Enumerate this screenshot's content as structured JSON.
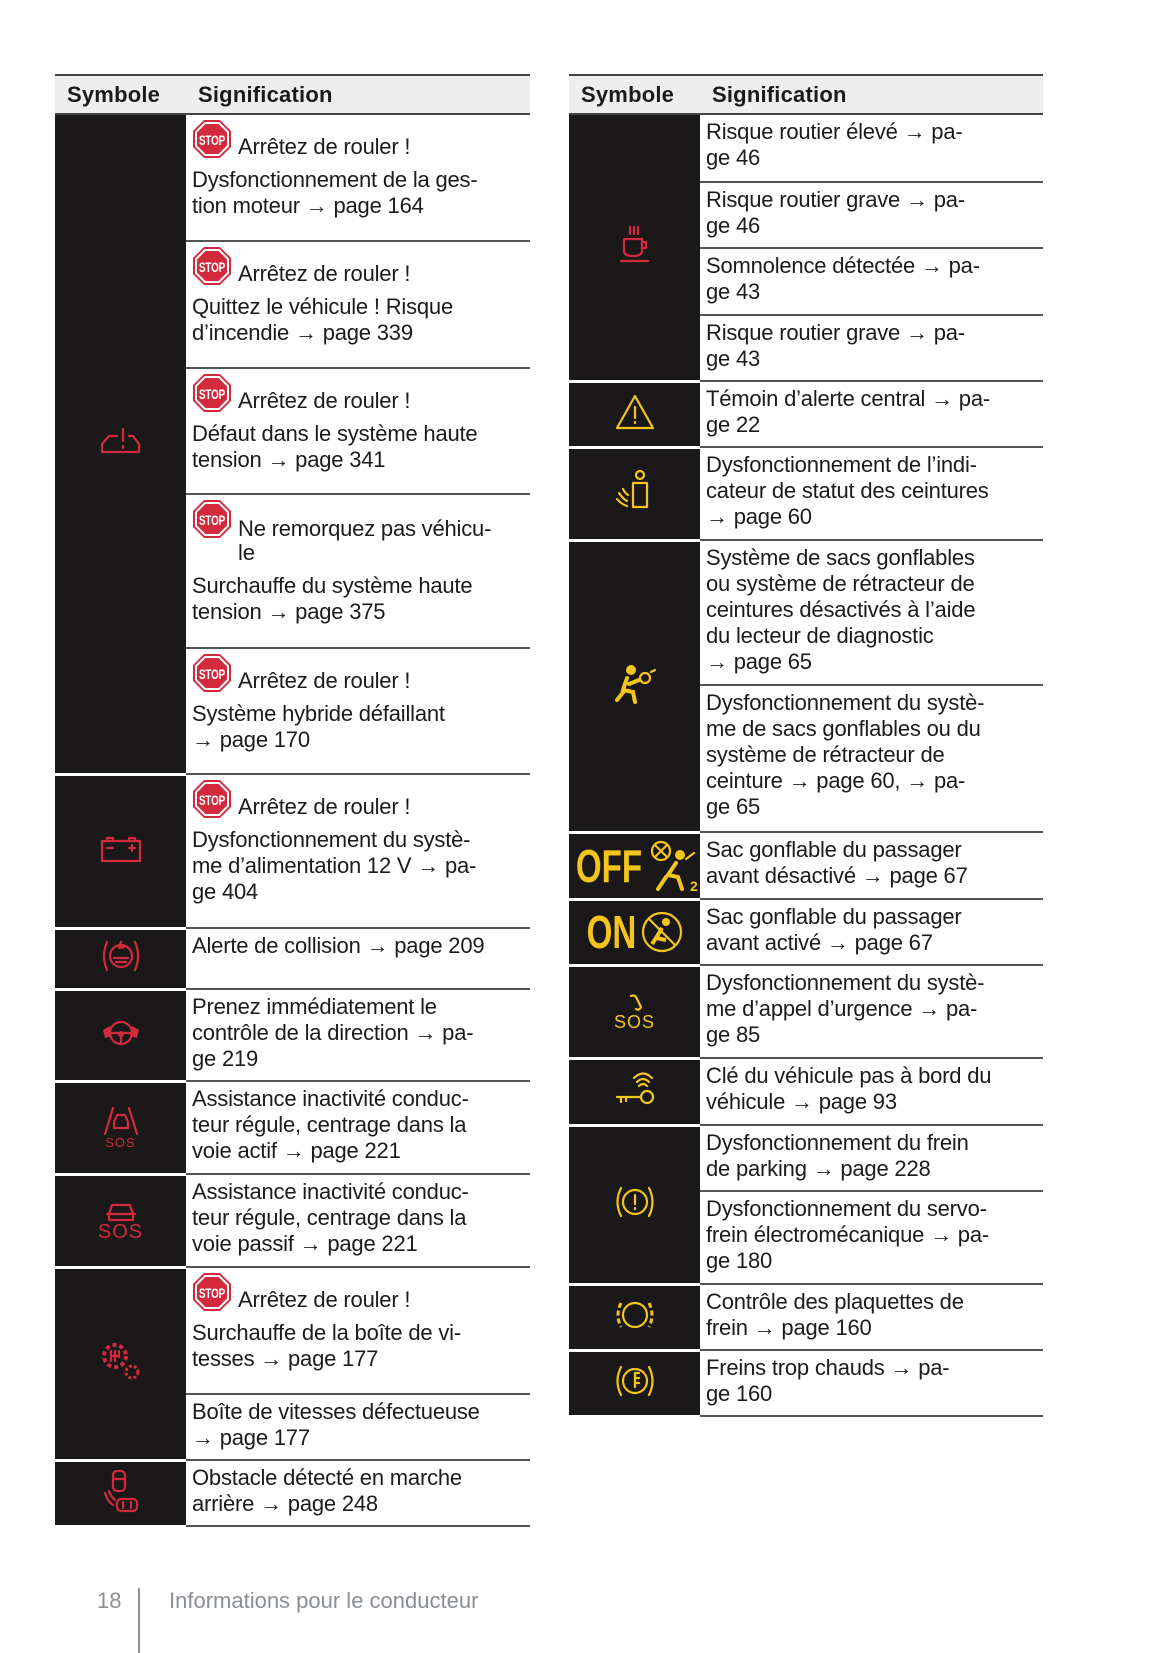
{
  "colors": {
    "red": "#d22a3c",
    "yellow": "#f4c51c",
    "cell_bg": "#1a1819",
    "header_bg": "#eeeeee"
  },
  "headers": {
    "symbol": "Symbole",
    "meaning": "Signification"
  },
  "left": [
    {
      "icon": "engine-warning-icon",
      "color": "red",
      "entries": [
        {
          "stop": "Arrêtez de rouler !",
          "text": "Dysfonctionnement de la ges-\ntion moteur → page 164"
        },
        {
          "stop": "Arrêtez de rouler !",
          "text": "Quittez le véhicule ! Risque\nd’incendie → page 339"
        },
        {
          "stop": "Arrêtez de rouler !",
          "text": "Défaut dans le système haute\ntension → page 341"
        },
        {
          "stop": "Ne remorquez pas véhicu-\nle",
          "text": "Surchauffe du système haute\ntension → page 375"
        },
        {
          "stop": "Arrêtez de rouler !",
          "text": "Système hybride défaillant\n→ page 170"
        }
      ]
    },
    {
      "icon": "battery-icon",
      "color": "red",
      "entries": [
        {
          "stop": "Arrêtez de rouler !",
          "text": "Dysfonctionnement du systè-\nme d’alimentation 12 V → pa-\nge 404"
        }
      ]
    },
    {
      "icon": "collision-alert-icon",
      "color": "red",
      "entries": [
        {
          "text": "Alerte de collision → page 209"
        }
      ]
    },
    {
      "icon": "hands-on-wheel-icon",
      "color": "red",
      "entries": [
        {
          "text": "Prenez immédiatement le\ncontrôle de la direction → pa-\nge 219"
        }
      ]
    },
    {
      "icon": "lane-centering-sos-icon",
      "color": "red",
      "label": "SOS",
      "entries": [
        {
          "text": "Assistance inactivité conduc-\nteur régule, centrage dans la\nvoie actif → page 221"
        }
      ]
    },
    {
      "icon": "car-sos-icon",
      "color": "red",
      "label": "SOS",
      "entries": [
        {
          "text": "Assistance inactivité conduc-\nteur régule, centrage dans la\nvoie passif → page 221"
        }
      ]
    },
    {
      "icon": "transmission-gear-icon",
      "color": "red",
      "entries": [
        {
          "stop": "Arrêtez de rouler !",
          "text": "Surchauffe de la boîte de vi-\ntesses → page 177"
        },
        {
          "text": "Boîte de vitesses défectueuse\n→ page 177"
        }
      ]
    },
    {
      "icon": "rear-obstacle-icon",
      "color": "red",
      "entries": [
        {
          "text": "Obstacle détecté en marche\narrière → page 248"
        }
      ]
    }
  ],
  "right": [
    {
      "icon": "coffee-cup-icon",
      "color": "red",
      "entries": [
        {
          "text": "Risque routier élevé → pa-\nge 46"
        },
        {
          "text": "Risque routier grave → pa-\nge 46"
        },
        {
          "text": "Somnolence détectée → pa-\nge 43"
        },
        {
          "text": "Risque routier grave → pa-\nge 43"
        }
      ]
    },
    {
      "icon": "warning-triangle-icon",
      "color": "yellow",
      "entries": [
        {
          "text": "Témoin d’alerte central → pa-\nge 22"
        }
      ]
    },
    {
      "icon": "seatbelt-status-icon",
      "color": "yellow",
      "entries": [
        {
          "text": "Dysfonctionnement de l’indi-\ncateur de statut des ceintures\n→ page 60"
        }
      ]
    },
    {
      "icon": "airbag-icon",
      "color": "yellow",
      "entries": [
        {
          "text": "Système de sacs gonflables\nou système de rétracteur de\nceintures désactivés à l’aide\ndu lecteur de diagnostic\n→ page 65"
        },
        {
          "text": "Dysfonctionnement du systè-\nme de sacs gonflables ou du\nsystème de rétracteur de\nceinture → page 60, → pa-\nge 65"
        }
      ]
    },
    {
      "icon": "airbag-off-icon",
      "color": "yellow",
      "label": "OFF",
      "entries": [
        {
          "text": "Sac gonflable du passager\navant désactivé → page 67"
        }
      ]
    },
    {
      "icon": "airbag-on-icon",
      "color": "yellow",
      "label": "ON",
      "entries": [
        {
          "text": "Sac gonflable du passager\navant activé → page 67"
        }
      ]
    },
    {
      "icon": "emergency-call-icon",
      "color": "yellow",
      "label": "SOS",
      "entries": [
        {
          "text": "Dysfonctionnement du systè-\nme d’appel d’urgence → pa-\nge 85"
        }
      ]
    },
    {
      "icon": "key-not-detected-icon",
      "color": "yellow",
      "entries": [
        {
          "text": "Clé du véhicule pas à bord du\nvéhicule → page 93"
        }
      ]
    },
    {
      "icon": "brake-warning-icon",
      "color": "yellow",
      "entries": [
        {
          "text": "Dysfonctionnement du frein\nde parking → page 228"
        },
        {
          "text": "Dysfonctionnement du servo-\nfrein électromécanique → pa-\nge 180"
        }
      ]
    },
    {
      "icon": "brake-pads-icon",
      "color": "yellow",
      "entries": [
        {
          "text": "Contrôle des plaquettes de\nfrein → page 160"
        }
      ]
    },
    {
      "icon": "brake-hot-icon",
      "color": "yellow",
      "entries": [
        {
          "text": "Freins trop chauds → pa-\nge 160"
        }
      ]
    }
  ],
  "footer": {
    "page_number": "18",
    "section": "Informations pour le conducteur"
  }
}
